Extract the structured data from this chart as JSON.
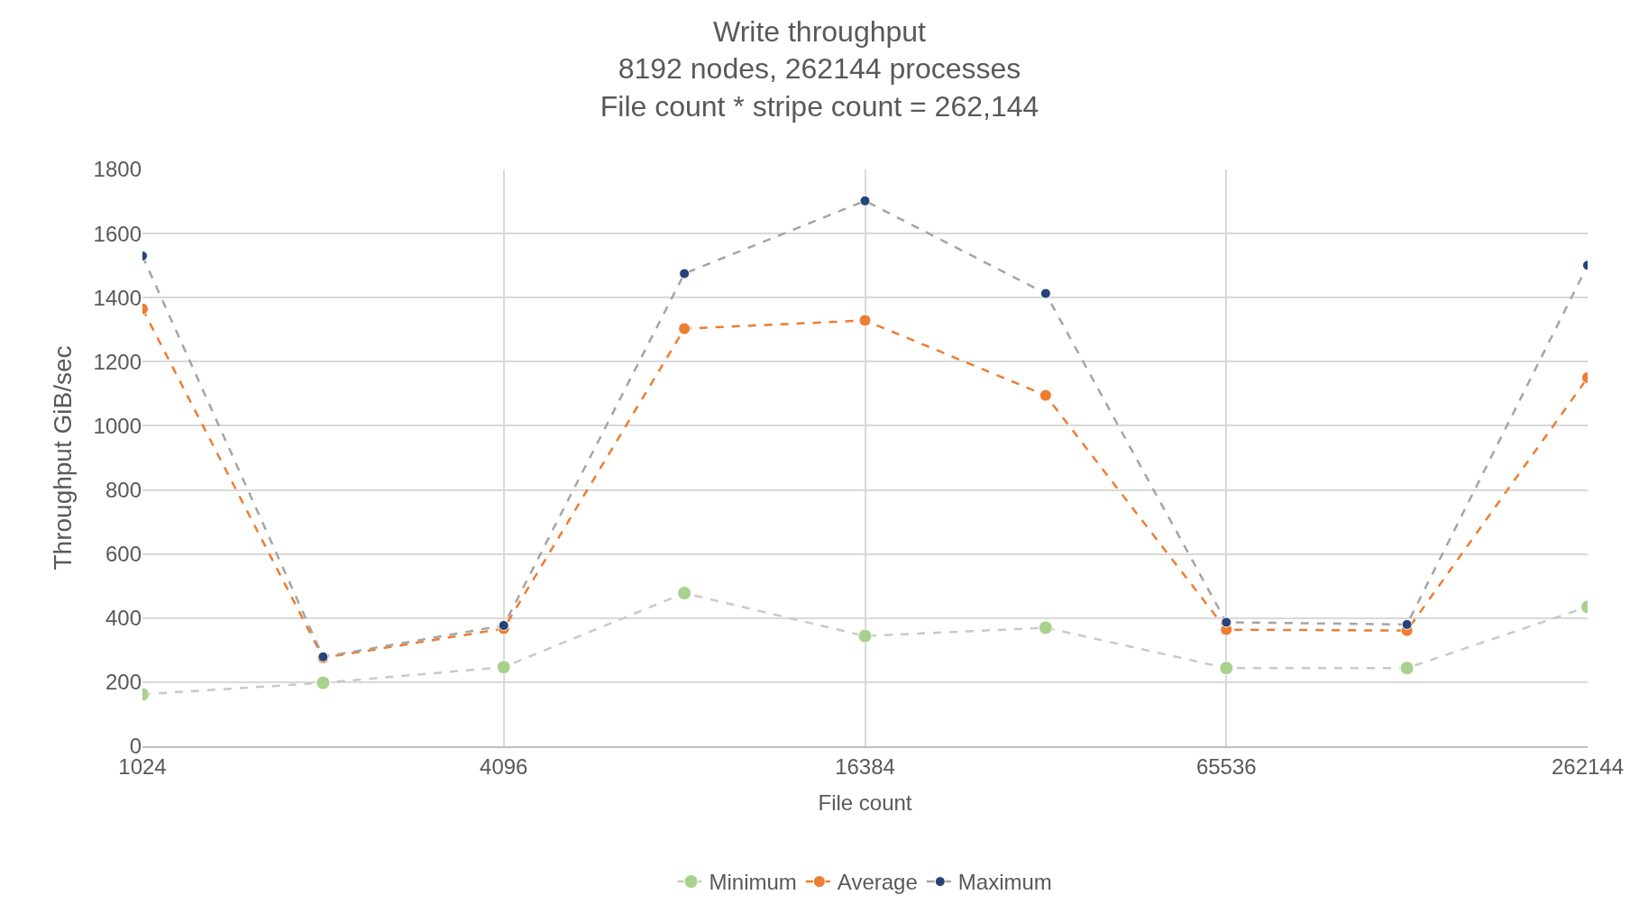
{
  "chart_data": {
    "type": "line",
    "title": "Write throughput\n8192 nodes, 262144 processes\nFile count * stripe count = 262,144",
    "xlabel": "File count",
    "ylabel": "Throughput GiB/sec",
    "x": [
      1024,
      2048,
      4096,
      8192,
      16384,
      32768,
      65536,
      131072,
      262144
    ],
    "log": "x",
    "xlim": [
      1024,
      262144
    ],
    "xticks": [
      1024,
      4096,
      16384,
      65536,
      262144
    ],
    "ylim": [
      0,
      1800
    ],
    "yticks": [
      0,
      200,
      400,
      600,
      800,
      1000,
      1200,
      1400,
      1600,
      1800
    ],
    "grid": true,
    "legend": "bottom",
    "marker": "circle",
    "line_style": "dashed",
    "series": [
      {
        "name": "Minimum",
        "color": "#c9c9c9",
        "colors": [
          "#a9d18e",
          "#a9d18e",
          "#a9d18e",
          "#a9d18e",
          "#a9d18e",
          "#a9d18e",
          "#a9d18e",
          "#a9d18e",
          "#a9d18e"
        ],
        "values": [
          162,
          198,
          247,
          478,
          344,
          370,
          244,
          244,
          435
        ]
      },
      {
        "name": "Average",
        "color": "#ed7d31",
        "colors": [
          "#ed7d31",
          "#ed7d31",
          "#ed7d31",
          "#ed7d31",
          "#ed7d31",
          "#ed7d31",
          "#ed7d31",
          "#ed7d31",
          "#ed7d31"
        ],
        "values": [
          1365,
          276,
          367,
          1303,
          1329,
          1095,
          364,
          361,
          1150
        ]
      },
      {
        "name": "Maximum",
        "color": "#a5a5a5",
        "colors": [
          "#264478",
          "#264478",
          "#264478",
          "#264478",
          "#264478",
          "#264478",
          "#264478",
          "#264478",
          "#264478"
        ],
        "values": [
          1530,
          279,
          377,
          1475,
          1702,
          1413,
          387,
          380,
          1501
        ]
      }
    ]
  }
}
